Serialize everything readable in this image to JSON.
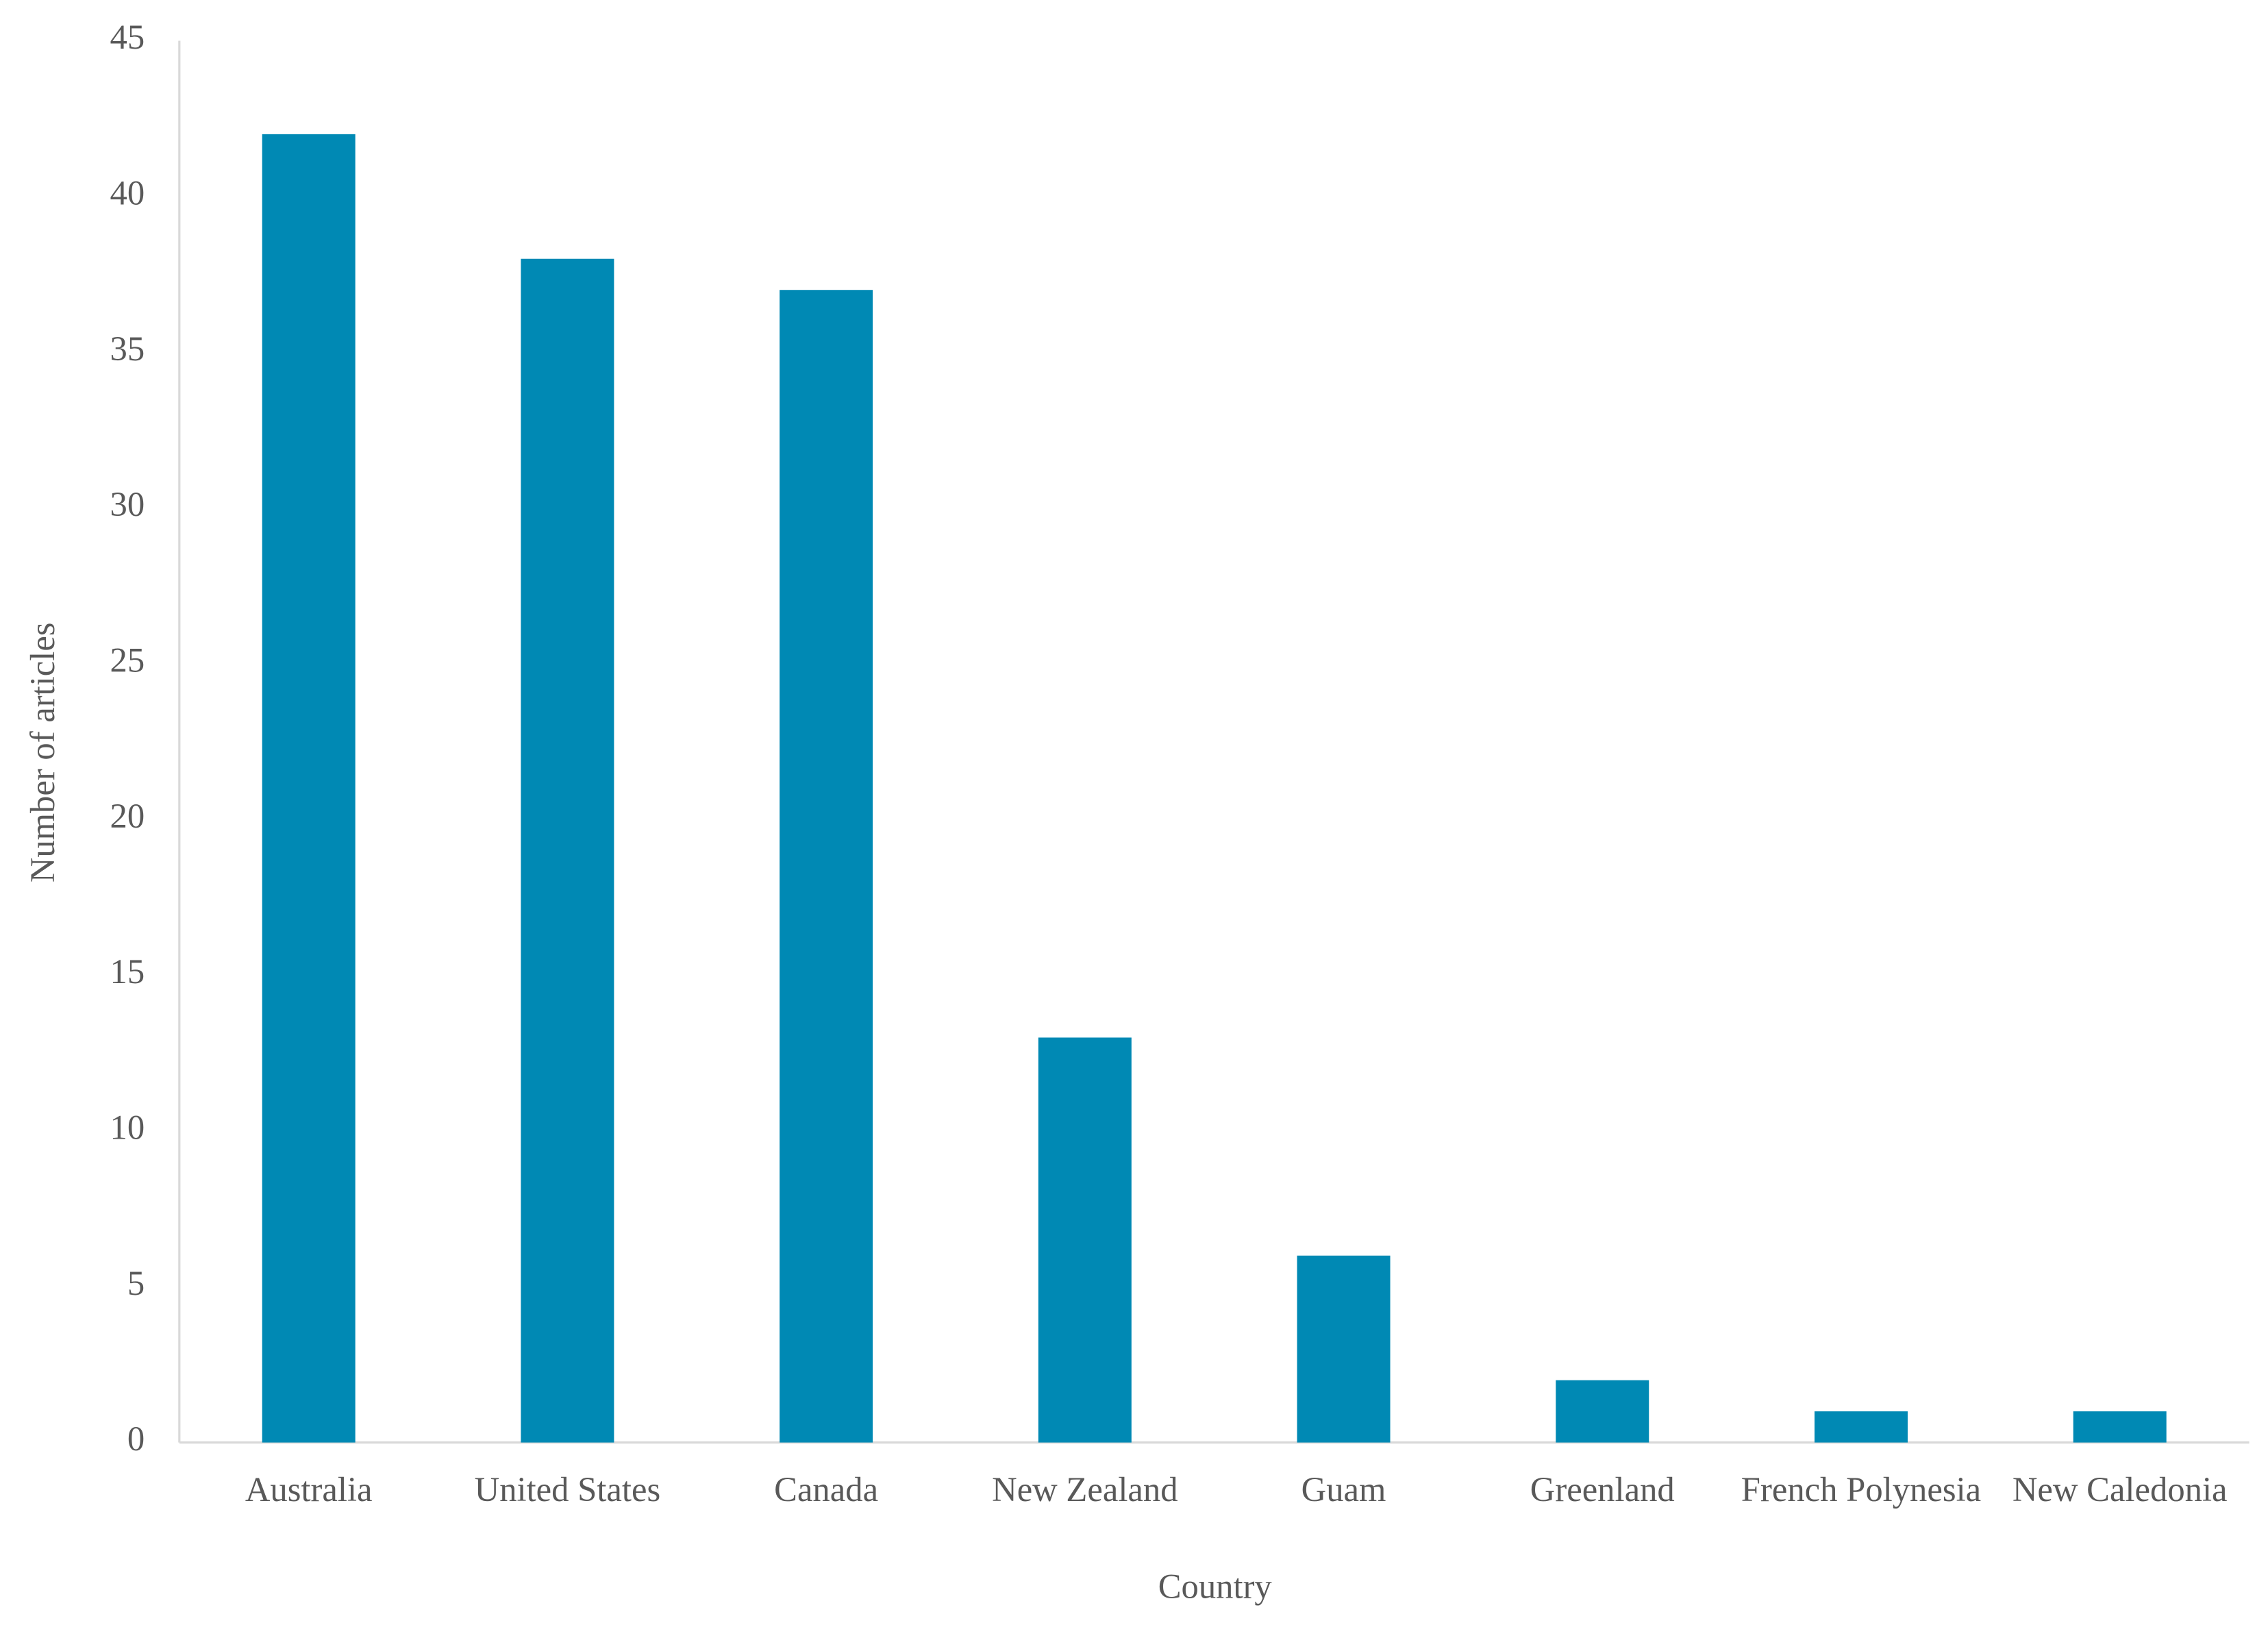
{
  "chart_data": {
    "type": "bar",
    "x_label": "Country",
    "y_label": "Number of articles",
    "categories": [
      "Australia",
      "United States",
      "Canada",
      "New Zealand",
      "Guam",
      "Greenland",
      "French Polynesia",
      "New Caledonia"
    ],
    "values": [
      42,
      38,
      37,
      13,
      6,
      2,
      1,
      1
    ],
    "color": "#0089b4",
    "ylim": [
      0,
      45
    ],
    "yticks": [
      0,
      5,
      10,
      15,
      20,
      25,
      30,
      35,
      40,
      45
    ],
    "grid": false
  }
}
